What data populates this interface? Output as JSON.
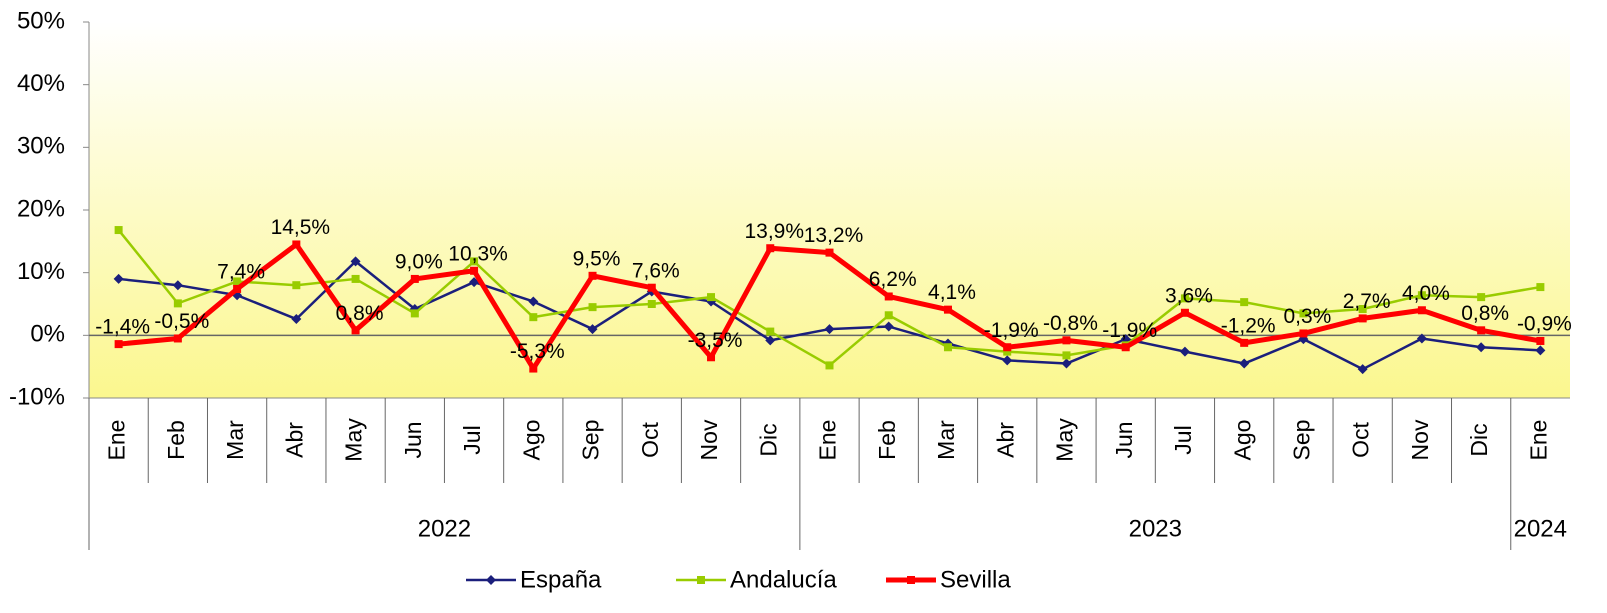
{
  "chart_data": {
    "type": "line",
    "groups": [
      {
        "name": "2022",
        "categories": [
          "Ene",
          "Feb",
          "Mar",
          "Abr",
          "May",
          "Jun",
          "Jul",
          "Ago",
          "Sep",
          "Oct",
          "Nov",
          "Dic"
        ]
      },
      {
        "name": "2023",
        "categories": [
          "Ene",
          "Feb",
          "Mar",
          "Abr",
          "May",
          "Jun",
          "Jul",
          "Ago",
          "Sep",
          "Oct",
          "Nov",
          "Dic"
        ]
      },
      {
        "name": "2024",
        "categories": [
          "Ene"
        ]
      }
    ],
    "series": [
      {
        "name": "España",
        "color": "#1b1f7c",
        "marker": "diamond",
        "values": [
          9.0,
          8.0,
          6.4,
          2.6,
          11.8,
          4.2,
          8.5,
          5.4,
          1.0,
          7.0,
          5.4,
          -0.8,
          1.0,
          1.4,
          -1.3,
          -4.0,
          -4.5,
          -0.6,
          -2.6,
          -4.5,
          -0.6,
          -5.4,
          -0.5,
          -1.9,
          -2.4
        ]
      },
      {
        "name": "Andalucía",
        "color": "#99cc00",
        "marker": "square",
        "values": [
          16.8,
          5.1,
          8.6,
          8.0,
          9.0,
          3.5,
          11.8,
          2.9,
          4.5,
          5.0,
          6.1,
          0.6,
          -4.8,
          3.2,
          -1.9,
          -2.6,
          -3.2,
          -1.6,
          5.9,
          5.3,
          3.5,
          4.2,
          6.4,
          6.1,
          7.7
        ]
      },
      {
        "name": "Sevilla",
        "color": "#ff0000",
        "marker": "square",
        "values": [
          -1.4,
          -0.5,
          7.4,
          14.5,
          0.8,
          9.0,
          10.3,
          -5.3,
          9.5,
          7.6,
          -3.5,
          13.9,
          13.2,
          6.2,
          4.1,
          -1.9,
          -0.8,
          -1.9,
          3.6,
          -1.2,
          0.3,
          2.7,
          4.0,
          0.8,
          -0.9
        ],
        "value_labels": [
          "-1,4%",
          "-0,5%",
          "7,4%",
          "14,5%",
          "0,8%",
          "9,0%",
          "10,3%",
          "-5,3%",
          "9,5%",
          "7,6%",
          "-3,5%",
          "13,9%",
          "13,2%",
          "6,2%",
          "4,1%",
          "-1,9%",
          "-0,8%",
          "-1,9%",
          "3,6%",
          "-1,2%",
          "0,3%",
          "2,7%",
          "4,0%",
          "0,8%",
          "-0,9%"
        ]
      }
    ],
    "ylim": [
      -10,
      50
    ],
    "yticks": [
      {
        "value": -10,
        "label": "-10%"
      },
      {
        "value": 0,
        "label": "0%"
      },
      {
        "value": 10,
        "label": "10%"
      },
      {
        "value": 20,
        "label": "20%"
      },
      {
        "value": 30,
        "label": "30%"
      },
      {
        "value": 40,
        "label": "40%"
      },
      {
        "value": 50,
        "label": "50%"
      }
    ],
    "legend": "bottom"
  }
}
